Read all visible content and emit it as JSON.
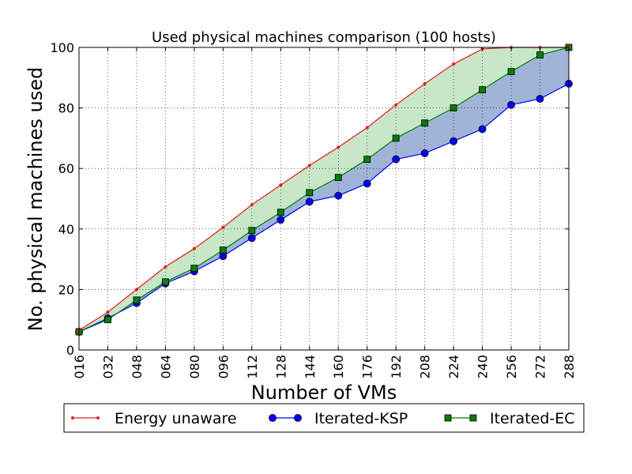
{
  "chart_data": {
    "type": "line",
    "title": "Used physical machines comparison (100 hosts)",
    "xlabel": "Number of VMs",
    "ylabel": "No. physical machines used",
    "x": [
      "016",
      "032",
      "048",
      "064",
      "080",
      "096",
      "112",
      "128",
      "144",
      "160",
      "176",
      "192",
      "208",
      "224",
      "240",
      "256",
      "272",
      "288"
    ],
    "ylim": [
      0,
      100
    ],
    "yticks": [
      "0",
      "20",
      "40",
      "60",
      "80",
      "100"
    ],
    "grid": true,
    "legend_position": "bottom",
    "series": [
      {
        "name": "Energy unaware",
        "color": "#e41a1c",
        "marker": "small-dot",
        "values": [
          6.5,
          12.5,
          20,
          27.5,
          33.5,
          40.5,
          48,
          54.5,
          61,
          67,
          73.5,
          81,
          88,
          94.5,
          99.5,
          100,
          100,
          100
        ]
      },
      {
        "name": "Iterated-KSP",
        "color": "#0000ff",
        "marker": "circle",
        "values": [
          6,
          10.5,
          15.5,
          22,
          26,
          31,
          37,
          43,
          49,
          51,
          55,
          63,
          65,
          69,
          73,
          81,
          83,
          88
        ]
      },
      {
        "name": "Iterated-EC",
        "color": "#007f00",
        "marker": "square",
        "values": [
          6,
          10,
          16.5,
          22.5,
          27,
          33,
          39.5,
          45.5,
          52,
          57,
          63,
          70,
          75,
          80,
          86,
          92,
          97.5,
          100
        ]
      }
    ],
    "fills": [
      {
        "between": [
          "Energy unaware",
          "Iterated-EC"
        ],
        "color": "#c8e6c8"
      },
      {
        "between": [
          "Iterated-EC",
          "Iterated-KSP"
        ],
        "color": "#a0b4d8"
      }
    ]
  }
}
